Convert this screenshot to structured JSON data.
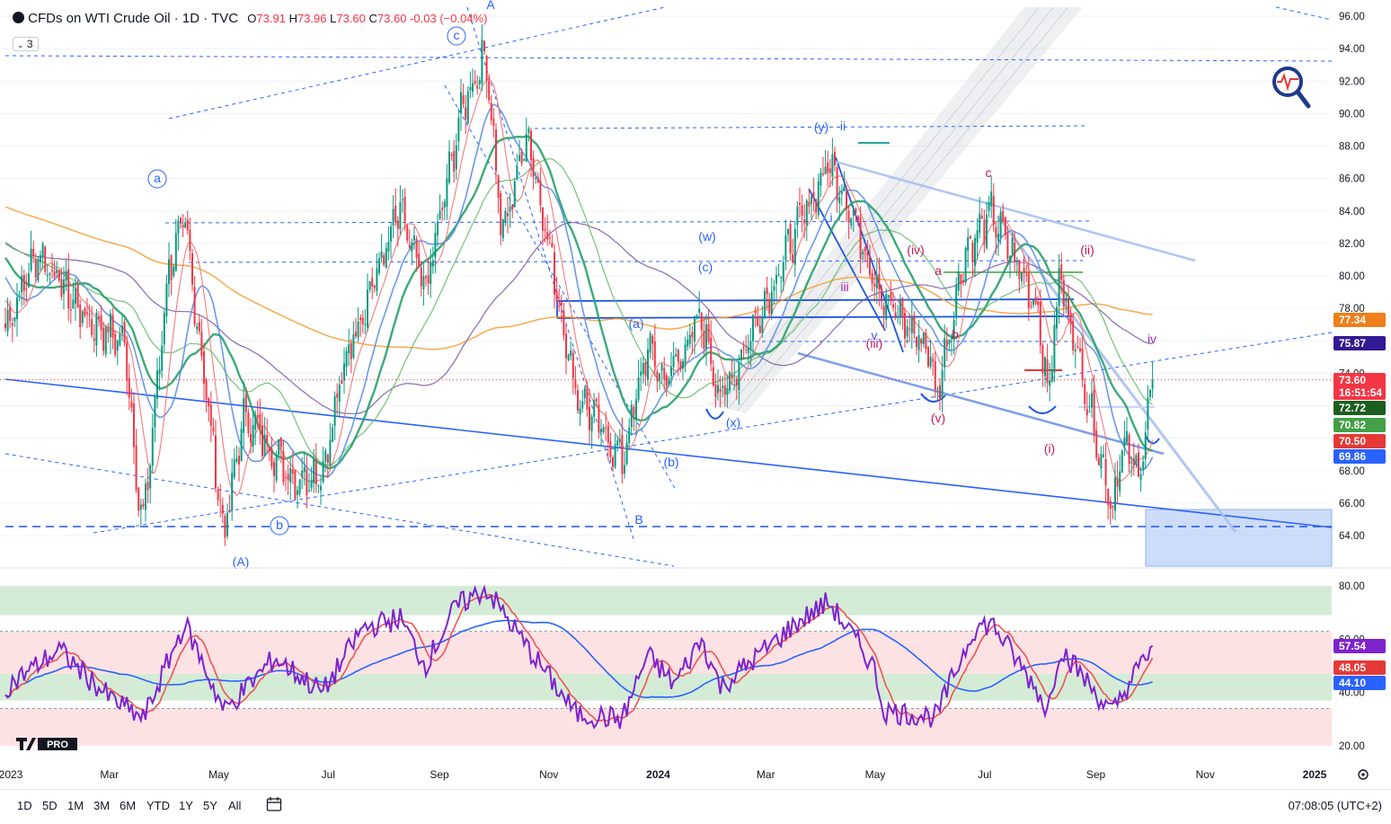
{
  "header": {
    "symbol": "CFDs on WTI Crude Oil · 1D · TVC",
    "o_label": "O",
    "o": "73.91",
    "h_label": "H",
    "h": "73.96",
    "l_label": "L",
    "l": "73.60",
    "c_label": "C",
    "c": "73.60",
    "change": "-0.03 (−0.04%)",
    "indicator_count": "3"
  },
  "timeframes": [
    "1D",
    "5D",
    "1M",
    "3M",
    "6M",
    "YTD",
    "1Y",
    "5Y",
    "All"
  ],
  "clock": "07:08:05 (UTC+2)",
  "brand": "PRO",
  "colors": {
    "up": "#089981",
    "down": "#f23645",
    "wave_blue": "#2962ff",
    "wave_magenta": "#9c27b0",
    "rsi": "#7e22ce"
  },
  "chart_data": [
    {
      "type": "candlestick",
      "ylim": [
        62.5,
        96.5
      ],
      "y_ticks": [
        "96.00",
        "94.00",
        "92.00",
        "90.00",
        "88.00",
        "86.00",
        "84.00",
        "82.00",
        "80.00",
        "78.00",
        "76.00",
        "74.00",
        "72.00",
        "70.00",
        "68.00",
        "66.00",
        "64.00"
      ],
      "x_ticks": [
        "2023",
        "Mar",
        "May",
        "Jul",
        "Sep",
        "Nov",
        "2024",
        "Mar",
        "May",
        "Jul",
        "Sep",
        "Nov",
        "2025"
      ],
      "price_path": [
        [
          "2023-01-02",
          76.8
        ],
        [
          "2023-01-20",
          81.5
        ],
        [
          "2023-02-15",
          77.5
        ],
        [
          "2023-03-10",
          75.8
        ],
        [
          "2023-03-17",
          66.5
        ],
        [
          "2023-03-20",
          64.8
        ],
        [
          "2023-04-03",
          80.5
        ],
        [
          "2023-04-12",
          83.3
        ],
        [
          "2023-05-04",
          64.0
        ],
        [
          "2023-05-15",
          71.5
        ],
        [
          "2023-06-12",
          67.5
        ],
        [
          "2023-06-28",
          68.0
        ],
        [
          "2023-07-12",
          75.5
        ],
        [
          "2023-08-10",
          84.0
        ],
        [
          "2023-08-24",
          79.0
        ],
        [
          "2023-09-14",
          90.5
        ],
        [
          "2023-09-27",
          93.7
        ],
        [
          "2023-10-06",
          82.3
        ],
        [
          "2023-10-20",
          89.0
        ],
        [
          "2023-11-16",
          72.9
        ],
        [
          "2023-12-12",
          68.6
        ],
        [
          "2023-12-26",
          75.6
        ],
        [
          "2024-01-05",
          73.5
        ],
        [
          "2024-01-25",
          77.4
        ],
        [
          "2024-02-05",
          72.3
        ],
        [
          "2024-03-18",
          82.8
        ],
        [
          "2024-04-05",
          86.9
        ],
        [
          "2024-04-12",
          85.6
        ],
        [
          "2024-05-06",
          78.5
        ],
        [
          "2024-05-31",
          75.5
        ],
        [
          "2024-06-04",
          72.5
        ],
        [
          "2024-06-20",
          81.5
        ],
        [
          "2024-07-05",
          83.9
        ],
        [
          "2024-07-31",
          77.9
        ],
        [
          "2024-08-05",
          72.5
        ],
        [
          "2024-08-12",
          80.0
        ],
        [
          "2024-09-10",
          65.8
        ],
        [
          "2024-09-16",
          69.5
        ],
        [
          "2024-09-25",
          67.8
        ],
        [
          "2024-10-03",
          73.6
        ]
      ],
      "last_close": 73.6,
      "price_labels": [
        {
          "text": "77.34",
          "color": "#ef7f1a"
        },
        {
          "text": "75.87",
          "color": "#311b92"
        },
        {
          "text": "73.60",
          "color": "#f23645"
        },
        {
          "text": "16:51:54",
          "color": "#f23645"
        },
        {
          "text": "72.72",
          "color": "#1b5e20"
        },
        {
          "text": "70.82",
          "color": "#43a047"
        },
        {
          "text": "70.50",
          "color": "#e53935"
        },
        {
          "text": "69.86",
          "color": "#2962ff"
        }
      ],
      "wave_labels": [
        {
          "text": "A",
          "color": "#2962ff"
        },
        {
          "text": "B",
          "color": "#2962ff"
        },
        {
          "text": "(A)",
          "color": "#2962ff"
        },
        {
          "text": "a",
          "color": "#2962ff"
        },
        {
          "text": "b",
          "color": "#2962ff"
        },
        {
          "text": "c",
          "color": "#2962ff"
        },
        {
          "text": "(a)",
          "color": "#2962ff"
        },
        {
          "text": "(b)",
          "color": "#2962ff"
        },
        {
          "text": "(c)",
          "color": "#2962ff"
        },
        {
          "text": "(w)",
          "color": "#2962ff"
        },
        {
          "text": "(x)",
          "color": "#2962ff"
        },
        {
          "text": "(y)",
          "color": "#2962ff"
        },
        {
          "text": "ii",
          "color": "#2962ff"
        },
        {
          "text": "i",
          "color": "#2962ff"
        },
        {
          "text": "v",
          "color": "#2962ff"
        },
        {
          "text": "(i)",
          "color": "#c2185b"
        },
        {
          "text": "(ii)",
          "color": "#c2185b"
        },
        {
          "text": "(iii)",
          "color": "#c2185b"
        },
        {
          "text": "(iv)",
          "color": "#c2185b"
        },
        {
          "text": "(v)",
          "color": "#c2185b"
        },
        {
          "text": "iii",
          "color": "#9c27b0"
        },
        {
          "text": "iv",
          "color": "#9c27b0"
        },
        {
          "text": "c",
          "color": "#c2185b"
        },
        {
          "text": "a",
          "color": "#c2185b"
        },
        {
          "text": "b",
          "color": "#c2185b"
        }
      ]
    },
    {
      "type": "line",
      "name": "RSI",
      "ylim": [
        17,
        83
      ],
      "y_ticks": [
        "80.00",
        "60.00",
        "40.00",
        "20.00"
      ],
      "rsi_path": [
        [
          "2023-01-02",
          42
        ],
        [
          "2023-02-01",
          56
        ],
        [
          "2023-03-01",
          38
        ],
        [
          "2023-03-20",
          30
        ],
        [
          "2023-04-12",
          66
        ],
        [
          "2023-05-04",
          33
        ],
        [
          "2023-06-01",
          53
        ],
        [
          "2023-06-28",
          40
        ],
        [
          "2023-07-20",
          64
        ],
        [
          "2023-08-10",
          68
        ],
        [
          "2023-08-24",
          50
        ],
        [
          "2023-09-10",
          72
        ],
        [
          "2023-09-27",
          79
        ],
        [
          "2023-10-20",
          57
        ],
        [
          "2023-11-16",
          32
        ],
        [
          "2023-12-12",
          30
        ],
        [
          "2023-12-26",
          54
        ],
        [
          "2024-01-10",
          43
        ],
        [
          "2024-01-25",
          60
        ],
        [
          "2024-02-05",
          42
        ],
        [
          "2024-03-18",
          66
        ],
        [
          "2024-04-05",
          74
        ],
        [
          "2024-04-30",
          50
        ],
        [
          "2024-05-06",
          33
        ],
        [
          "2024-06-04",
          31
        ],
        [
          "2024-06-25",
          64
        ],
        [
          "2024-07-05",
          66
        ],
        [
          "2024-07-31",
          40
        ],
        [
          "2024-08-05",
          33
        ],
        [
          "2024-08-12",
          57
        ],
        [
          "2024-09-10",
          32
        ],
        [
          "2024-09-20",
          44
        ],
        [
          "2024-10-03",
          57.54
        ]
      ],
      "price_labels": [
        {
          "text": "57.54",
          "color": "#7e22ce"
        },
        {
          "text": "48.05",
          "color": "#e53935"
        },
        {
          "text": "44.10",
          "color": "#2962ff"
        }
      ]
    }
  ]
}
